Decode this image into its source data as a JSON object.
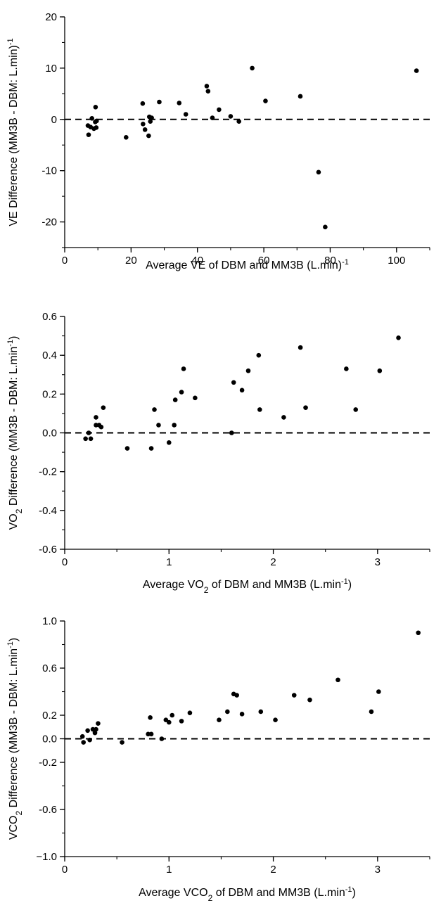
{
  "chart_data": [
    {
      "type": "scatter",
      "title": "",
      "xlabel": {
        "pre": "Average VE of DBM and MM3B (L.min",
        "sup": "-1",
        "post": ")"
      },
      "ylabel": {
        "pre": "VE Difference (MM3B - DBM: L.min",
        "sup": "-1",
        "post": ")"
      },
      "xlim": [
        0,
        110
      ],
      "ylim": [
        -25,
        20
      ],
      "xticks": [
        0,
        20,
        40,
        60,
        80,
        100
      ],
      "xtick_labels": [
        "0",
        "20",
        "40",
        "60",
        "80",
        "100"
      ],
      "yticks": [
        -20,
        -10,
        0,
        10,
        20
      ],
      "ytick_labels": [
        "-20",
        "-10",
        "0",
        "10",
        "20"
      ],
      "minor_x_step": 10,
      "minor_y_step": 5,
      "reference_line": 0,
      "points": [
        [
          7,
          -1.2
        ],
        [
          7.2,
          -3.0
        ],
        [
          7.8,
          -1.5
        ],
        [
          8.2,
          0.2
        ],
        [
          8.8,
          -1.8
        ],
        [
          9.2,
          -0.5
        ],
        [
          9.5,
          -1.6
        ],
        [
          9.3,
          2.4
        ],
        [
          9.6,
          -0.3
        ],
        [
          18.5,
          -3.5
        ],
        [
          23.5,
          3.1
        ],
        [
          23.6,
          -0.9
        ],
        [
          24.2,
          -2.0
        ],
        [
          25.3,
          -3.2
        ],
        [
          25.5,
          0.5
        ],
        [
          25.8,
          -0.4
        ],
        [
          26.2,
          0.3
        ],
        [
          28.5,
          3.4
        ],
        [
          34.5,
          3.2
        ],
        [
          36.5,
          1.0
        ],
        [
          42.8,
          6.5
        ],
        [
          43.2,
          5.5
        ],
        [
          44.5,
          0.3
        ],
        [
          46.5,
          1.9
        ],
        [
          50.0,
          0.6
        ],
        [
          52.5,
          -0.4
        ],
        [
          56.5,
          10.0
        ],
        [
          60.5,
          3.6
        ],
        [
          71.0,
          4.5
        ],
        [
          76.5,
          -10.3
        ],
        [
          78.5,
          -21.0
        ],
        [
          106.0,
          9.5
        ]
      ]
    },
    {
      "type": "scatter",
      "title": "",
      "xlabel": {
        "pre": "Average VO",
        "sub": "2",
        "post": " of DBM and MM3B (L.min",
        "sup": "-1",
        "post2": ")"
      },
      "ylabel": {
        "pre": "VO",
        "sub": "2",
        "post": " Difference (MM3B - DBM: L.min",
        "sup": "-1",
        "post2": ")"
      },
      "xlim": [
        0,
        3.5
      ],
      "ylim": [
        -0.6,
        0.6
      ],
      "xticks": [
        0,
        1,
        2,
        3
      ],
      "xtick_labels": [
        "0",
        "1",
        "2",
        "3"
      ],
      "yticks": [
        -0.6,
        -0.4,
        -0.2,
        0.0,
        0.2,
        0.4,
        0.6
      ],
      "ytick_labels": [
        "-0.6",
        "-0.4",
        "-0.2",
        "0.0",
        "0.2",
        "0.4",
        "0.6"
      ],
      "minor_x_step": 0.5,
      "minor_y_step": 0.1,
      "reference_line": 0,
      "points": [
        [
          0.2,
          -0.03
        ],
        [
          0.23,
          0.0
        ],
        [
          0.25,
          -0.03
        ],
        [
          0.3,
          0.08
        ],
        [
          0.3,
          0.04
        ],
        [
          0.33,
          0.04
        ],
        [
          0.35,
          0.03
        ],
        [
          0.37,
          0.13
        ],
        [
          0.6,
          -0.08
        ],
        [
          0.83,
          -0.08
        ],
        [
          0.86,
          0.12
        ],
        [
          0.9,
          0.04
        ],
        [
          1.0,
          -0.05
        ],
        [
          1.05,
          0.04
        ],
        [
          1.06,
          0.17
        ],
        [
          1.12,
          0.21
        ],
        [
          1.14,
          0.33
        ],
        [
          1.25,
          0.18
        ],
        [
          1.6,
          0.0
        ],
        [
          1.62,
          0.26
        ],
        [
          1.7,
          0.22
        ],
        [
          1.76,
          0.32
        ],
        [
          1.86,
          0.4
        ],
        [
          1.87,
          0.12
        ],
        [
          2.1,
          0.08
        ],
        [
          2.26,
          0.44
        ],
        [
          2.31,
          0.13
        ],
        [
          2.7,
          0.33
        ],
        [
          2.79,
          0.12
        ],
        [
          3.02,
          0.32
        ],
        [
          3.2,
          0.49
        ]
      ]
    },
    {
      "type": "scatter",
      "title": "",
      "xlabel": {
        "pre": "Average VCO",
        "sub": "2",
        "post": " of DBM and MM3B (L.min",
        "sup": "-1",
        "post2": ")"
      },
      "ylabel": {
        "pre": "VCO",
        "sub": "2",
        "post": " Difference (MM3B - DBM: L.min",
        "sup": "-1",
        "post2": ")"
      },
      "xlim": [
        0,
        3.5
      ],
      "ylim": [
        -1.0,
        1.0
      ],
      "xticks": [
        0,
        1,
        2,
        3
      ],
      "xtick_labels": [
        "0",
        "1",
        "2",
        "3"
      ],
      "yticks": [
        -1.0,
        -0.6,
        -0.2,
        0.0,
        0.2,
        0.6,
        1.0
      ],
      "ytick_labels": [
        "−1.0",
        "-0.6",
        "-0.2",
        "0.0",
        "0.2",
        "0.6",
        "1.0"
      ],
      "minor_x_step": 0.5,
      "minor_y_step": 0.2,
      "reference_line": 0,
      "points": [
        [
          0.17,
          0.02
        ],
        [
          0.18,
          -0.03
        ],
        [
          0.22,
          0.07
        ],
        [
          0.24,
          -0.01
        ],
        [
          0.27,
          0.08
        ],
        [
          0.29,
          0.05
        ],
        [
          0.3,
          0.08
        ],
        [
          0.32,
          0.13
        ],
        [
          0.55,
          -0.03
        ],
        [
          0.8,
          0.04
        ],
        [
          0.82,
          0.18
        ],
        [
          0.83,
          0.04
        ],
        [
          0.93,
          0.0
        ],
        [
          0.97,
          0.16
        ],
        [
          1.0,
          0.14
        ],
        [
          1.03,
          0.2
        ],
        [
          1.12,
          0.15
        ],
        [
          1.2,
          0.22
        ],
        [
          1.48,
          0.16
        ],
        [
          1.56,
          0.23
        ],
        [
          1.62,
          0.38
        ],
        [
          1.65,
          0.37
        ],
        [
          1.7,
          0.21
        ],
        [
          1.88,
          0.23
        ],
        [
          2.02,
          0.16
        ],
        [
          2.2,
          0.37
        ],
        [
          2.35,
          0.33
        ],
        [
          2.62,
          0.5
        ],
        [
          2.94,
          0.23
        ],
        [
          3.01,
          0.4
        ],
        [
          3.39,
          0.9
        ]
      ]
    }
  ]
}
